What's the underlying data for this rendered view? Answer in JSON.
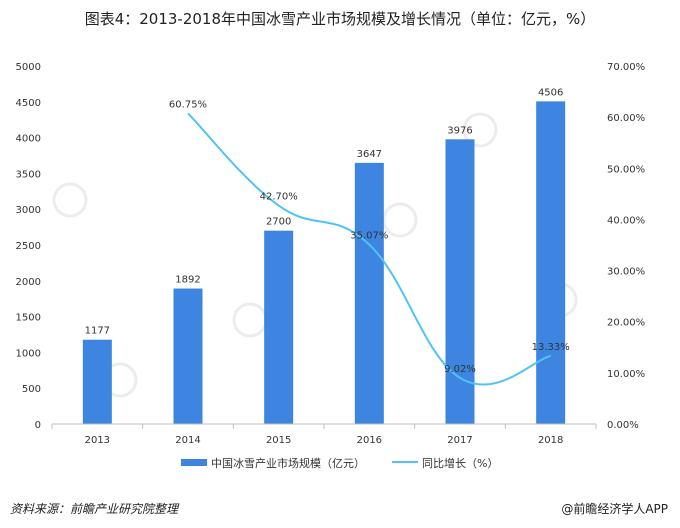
{
  "title": "图表4：2013-2018年中国冰雪产业市场规模及增长情况（单位：亿元，%）",
  "source": "资料来源：前瞻产业研究院整理",
  "brand": "@前瞻经济学人APP",
  "colors": {
    "bar": "#3d85e0",
    "line": "#4fc3f7",
    "axis": "#bfbfbf",
    "grid": "#e6e6e6",
    "watermark": "#c8c8c8"
  },
  "chart_data": {
    "type": "bar",
    "categories": [
      "2013",
      "2014",
      "2015",
      "2016",
      "2017",
      "2018"
    ],
    "series": [
      {
        "name": "中国冰雪产业市场规模（亿元）",
        "type": "bar",
        "axis": "left",
        "values": [
          1177,
          1892,
          2700,
          3647,
          3976,
          4506
        ],
        "labels": [
          "1177",
          "1892",
          "2700",
          "3647",
          "3976",
          "4506"
        ]
      },
      {
        "name": "同比增长（%）",
        "type": "line",
        "axis": "right",
        "values": [
          null,
          60.75,
          42.7,
          35.07,
          9.02,
          13.33
        ],
        "labels": [
          "",
          "60.75%",
          "42.70%",
          "35.07%",
          "9.02%",
          "13.33%"
        ]
      }
    ],
    "left_axis": {
      "ylim": [
        0,
        5000
      ],
      "ticks": [
        "0",
        "500",
        "1000",
        "1500",
        "2000",
        "2500",
        "3000",
        "3500",
        "4000",
        "4500",
        "5000"
      ]
    },
    "right_axis": {
      "ylim": [
        0,
        70
      ],
      "ticks": [
        "0.00%",
        "10.00%",
        "20.00%",
        "30.00%",
        "40.00%",
        "50.00%",
        "60.00%",
        "70.00%"
      ]
    },
    "legend_position": "bottom",
    "grid": false
  }
}
